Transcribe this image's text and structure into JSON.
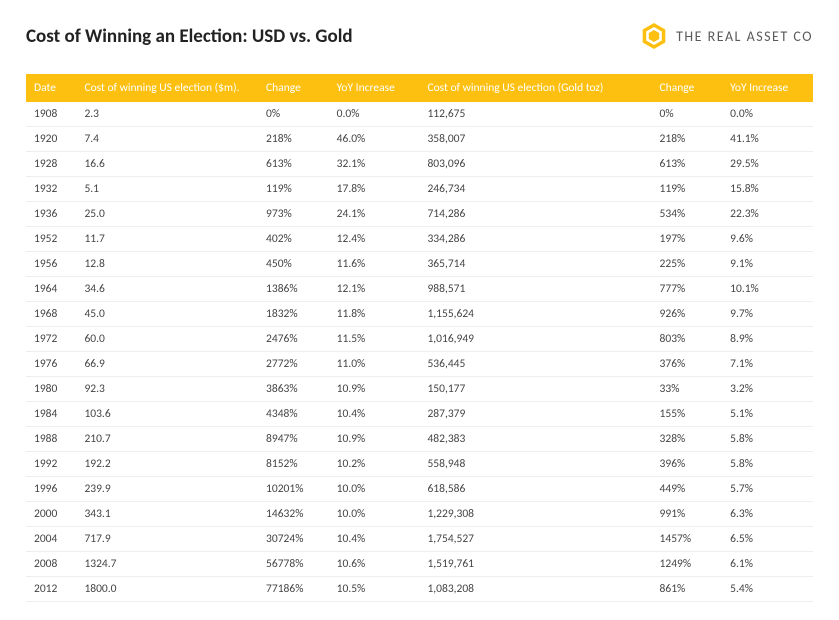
{
  "header": {
    "title": "Cost of Winning an Election: USD vs. Gold",
    "logo_text": "THE REAL ASSET CO",
    "logo_color": "#fec010"
  },
  "table": {
    "header_bg": "#fec010",
    "header_fg": "#ffffff",
    "row_border": "#eeeeee",
    "columns": [
      "Date",
      "Cost of winning US election ($m).",
      "Change",
      "YoY Increase",
      "Cost of winning US election (Gold toz)",
      "Change",
      "YoY Increase"
    ],
    "rows": [
      [
        "1908",
        "2.3",
        "0%",
        "0.0%",
        "112,675",
        "0%",
        "0.0%"
      ],
      [
        "1920",
        "7.4",
        "218%",
        "46.0%",
        "358,007",
        "218%",
        "41.1%"
      ],
      [
        "1928",
        "16.6",
        "613%",
        "32.1%",
        "803,096",
        "613%",
        "29.5%"
      ],
      [
        "1932",
        "5.1",
        "119%",
        "17.8%",
        "246,734",
        "119%",
        "15.8%"
      ],
      [
        "1936",
        "25.0",
        "973%",
        "24.1%",
        "714,286",
        "534%",
        "22.3%"
      ],
      [
        "1952",
        "11.7",
        "402%",
        "12.4%",
        "334,286",
        "197%",
        "9.6%"
      ],
      [
        "1956",
        "12.8",
        "450%",
        "11.6%",
        "365,714",
        "225%",
        "9.1%"
      ],
      [
        "1964",
        "34.6",
        "1386%",
        "12.1%",
        "988,571",
        "777%",
        "10.1%"
      ],
      [
        "1968",
        "45.0",
        "1832%",
        "11.8%",
        "1,155,624",
        "926%",
        "9.7%"
      ],
      [
        "1972",
        "60.0",
        "2476%",
        "11.5%",
        "1,016,949",
        "803%",
        "8.9%"
      ],
      [
        "1976",
        "66.9",
        "2772%",
        "11.0%",
        "536,445",
        "376%",
        "7.1%"
      ],
      [
        "1980",
        "92.3",
        "3863%",
        "10.9%",
        "150,177",
        "33%",
        "3.2%"
      ],
      [
        "1984",
        "103.6",
        "4348%",
        "10.4%",
        "287,379",
        "155%",
        "5.1%"
      ],
      [
        "1988",
        "210.7",
        "8947%",
        "10.9%",
        "482,383",
        "328%",
        "5.8%"
      ],
      [
        "1992",
        "192.2",
        "8152%",
        "10.2%",
        "558,948",
        "396%",
        "5.8%"
      ],
      [
        "1996",
        "239.9",
        "10201%",
        "10.0%",
        "618,586",
        "449%",
        "5.7%"
      ],
      [
        "2000",
        "343.1",
        "14632%",
        "10.0%",
        "1,229,308",
        "991%",
        "6.3%"
      ],
      [
        "2004",
        "717.9",
        "30724%",
        "10.4%",
        "1,754,527",
        "1457%",
        "6.5%"
      ],
      [
        "2008",
        "1324.7",
        "56778%",
        "10.6%",
        "1,519,761",
        "1249%",
        "6.1%"
      ],
      [
        "2012",
        "1800.0",
        "77186%",
        "10.5%",
        "1,083,208",
        "861%",
        "5.4%"
      ]
    ]
  }
}
